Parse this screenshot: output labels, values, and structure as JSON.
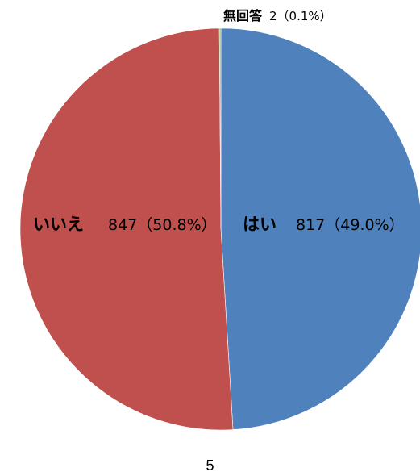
{
  "chart_data": {
    "type": "pie",
    "start": "12 o'clock",
    "direction": "clockwise",
    "slices": [
      {
        "name": "はい",
        "count_label": "817（49.0%）",
        "value": 817,
        "percent": 49.0,
        "color": "#4F81BD"
      },
      {
        "name": "いいえ",
        "count_label": "847（50.8%）",
        "value": 847,
        "percent": 50.8,
        "color": "#C0504D"
      },
      {
        "name": "無回答",
        "count_label": "2（0.1%）",
        "value": 2,
        "percent": 0.1,
        "color": "#9BBB59"
      }
    ]
  },
  "page": {
    "number": "5"
  }
}
